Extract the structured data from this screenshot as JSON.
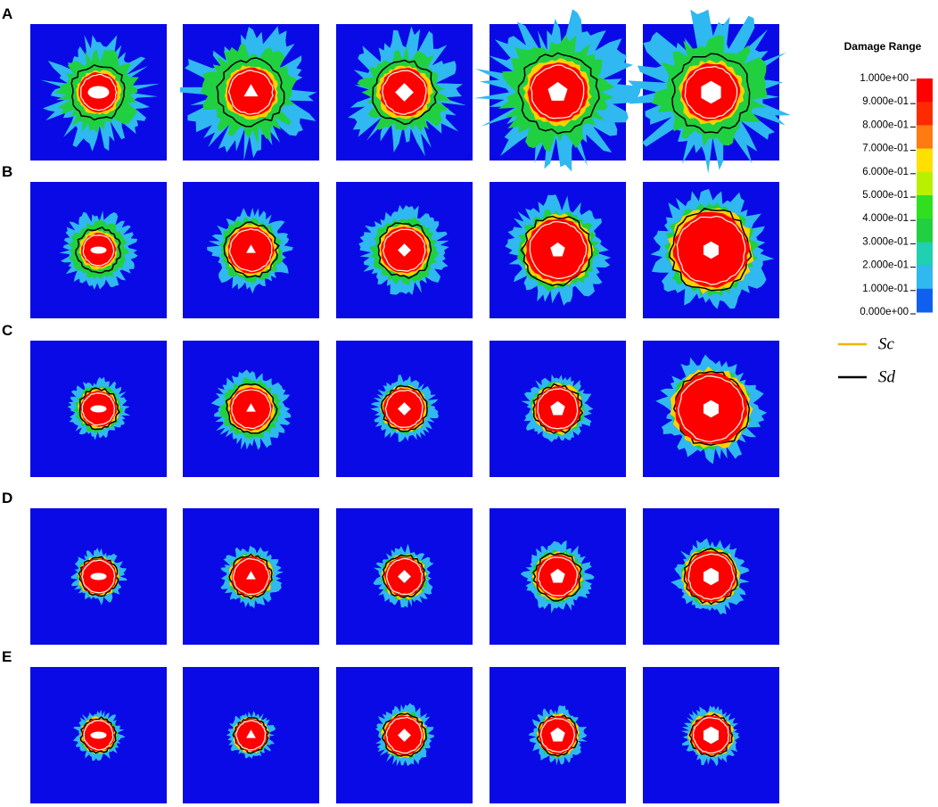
{
  "figure": {
    "row_labels": [
      "A",
      "B",
      "C",
      "D",
      "E"
    ],
    "legend": {
      "title": "Damage Range",
      "ticks": [
        "1.000e+00",
        "9.000e-01",
        "8.000e-01",
        "7.000e-01",
        "6.000e-01",
        "5.000e-01",
        "4.000e-01",
        "3.000e-01",
        "2.000e-01",
        "1.000e-01",
        "0.000e+00"
      ],
      "lines": [
        "Sc",
        "Sd"
      ]
    }
  }
}
